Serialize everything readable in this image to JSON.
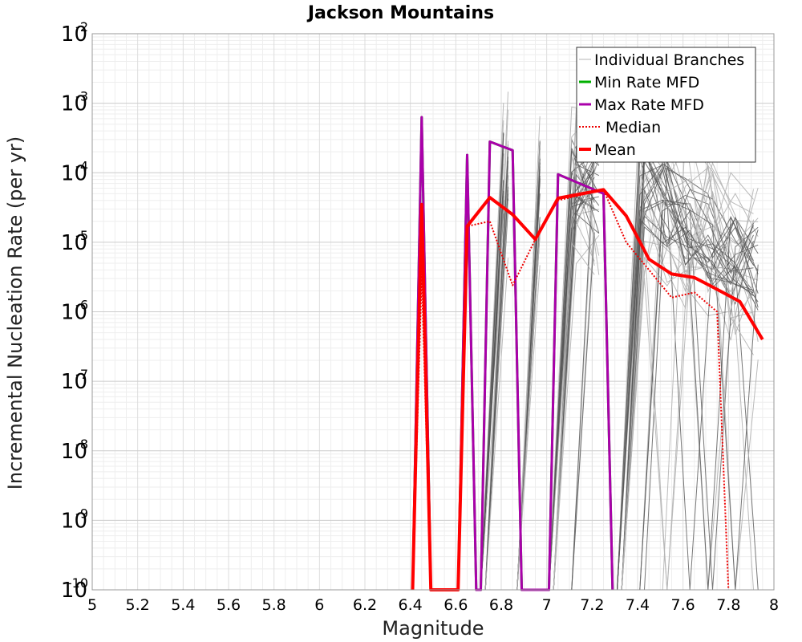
{
  "chart_data": {
    "type": "line",
    "title": "Jackson Mountains",
    "xlabel": "Magnitude",
    "ylabel": "Incremental Nucleation Rate (per yr)",
    "xlim": [
      5,
      8
    ],
    "ylim": [
      1e-10,
      0.01
    ],
    "yscale": "log",
    "grid": true,
    "legend_position": "top-right",
    "x_ticks": [
      "5",
      "5.2",
      "5.4",
      "5.6",
      "5.8",
      "6",
      "6.2",
      "6.4",
      "6.6",
      "6.8",
      "7",
      "7.2",
      "7.4",
      "7.6",
      "7.8",
      "8"
    ],
    "y_ticks": [
      {
        "value": 0.01,
        "base": "10",
        "exp": "-2"
      },
      {
        "value": 0.001,
        "base": "10",
        "exp": "-3"
      },
      {
        "value": 0.0001,
        "base": "10",
        "exp": "-4"
      },
      {
        "value": 1e-05,
        "base": "10",
        "exp": "-5"
      },
      {
        "value": 1e-06,
        "base": "10",
        "exp": "-6"
      },
      {
        "value": 1e-07,
        "base": "10",
        "exp": "-7"
      },
      {
        "value": 1e-08,
        "base": "10",
        "exp": "-8"
      },
      {
        "value": 1e-09,
        "base": "10",
        "exp": "-9"
      },
      {
        "value": 1e-10,
        "base": "10",
        "exp": "-10"
      }
    ],
    "series": [
      {
        "name": "Min Rate MFD",
        "color": "#00b000",
        "style": "solid",
        "x": [
          6.41,
          6.45,
          6.49,
          6.61,
          6.65,
          6.69,
          6.71,
          6.75,
          6.85,
          6.89,
          7.01,
          7.05,
          7.25,
          7.29
        ],
        "y": [
          1e-10,
          0.00063,
          1e-10,
          1e-10,
          0.00018,
          1e-10,
          1e-10,
          0.00028,
          0.00021,
          1e-10,
          1e-10,
          9.5e-05,
          5e-05,
          1e-10
        ]
      },
      {
        "name": "Max Rate MFD",
        "color": "#aa00aa",
        "style": "solid",
        "x": [
          6.41,
          6.45,
          6.49,
          6.61,
          6.65,
          6.69,
          6.71,
          6.75,
          6.85,
          6.89,
          7.01,
          7.05,
          7.25,
          7.29
        ],
        "y": [
          1e-10,
          0.00063,
          1e-10,
          1e-10,
          0.00018,
          1e-10,
          1e-10,
          0.00028,
          0.00021,
          1e-10,
          1e-10,
          9.5e-05,
          5e-05,
          1e-10
        ]
      },
      {
        "name": "Median",
        "color": "#ee0000",
        "style": "dotted",
        "x": [
          6.41,
          6.45,
          6.49,
          6.61,
          6.65,
          6.75,
          6.85,
          6.95,
          7.05,
          7.25,
          7.35,
          7.45,
          7.55,
          7.65,
          7.75,
          7.8
        ],
        "y": [
          1e-10,
          3.5e-06,
          1e-10,
          1e-10,
          1.7e-05,
          2e-05,
          2.4e-06,
          1.1e-05,
          4e-05,
          5.7e-05,
          1e-05,
          4e-06,
          1.6e-06,
          1.9e-06,
          1e-06,
          1e-10
        ]
      },
      {
        "name": "Mean",
        "color": "#ff0000",
        "style": "solid",
        "x": [
          6.41,
          6.45,
          6.49,
          6.61,
          6.65,
          6.75,
          6.85,
          6.95,
          7.05,
          7.25,
          7.35,
          7.45,
          7.55,
          7.65,
          7.75,
          7.85,
          7.95
        ],
        "y": [
          1e-10,
          3.5e-05,
          1e-10,
          1e-10,
          1.7e-05,
          4.4e-05,
          2.5e-05,
          1.1e-05,
          4.3e-05,
          5.7e-05,
          2.4e-05,
          5.7e-06,
          3.5e-06,
          3.1e-06,
          2.1e-06,
          1.4e-06,
          4e-07
        ]
      }
    ],
    "legend": [
      {
        "label": "Individual Branches",
        "color": "#b4b4b4",
        "style": "thin"
      },
      {
        "label": "Min Rate MFD",
        "color": "#00b000",
        "style": "solid"
      },
      {
        "label": "Max Rate MFD",
        "color": "#aa00aa",
        "style": "solid"
      },
      {
        "label": "Median",
        "color": "#ee0000",
        "style": "dotted"
      },
      {
        "label": "Mean",
        "color": "#ff0000",
        "style": "thick"
      }
    ]
  }
}
